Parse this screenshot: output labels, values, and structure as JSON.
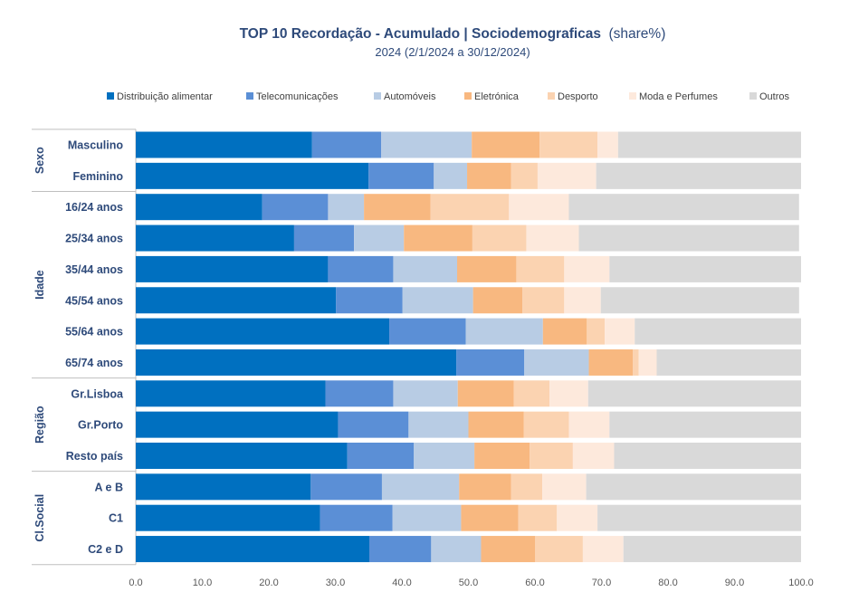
{
  "chart_data": {
    "type": "bar",
    "orientation": "horizontal",
    "stacked": true,
    "title": "TOP 10 Recordação - Acumulado | Sociodemograficas",
    "title_suffix": "(share%)",
    "subtitle": "2024 (2/1/2024 a 30/12/2024)",
    "legend_position": "top",
    "xlim": [
      0,
      100
    ],
    "x_ticks": [
      "0.0",
      "10.0",
      "20.0",
      "30.0",
      "40.0",
      "50.0",
      "60.0",
      "70.0",
      "80.0",
      "90.0",
      "100.0"
    ],
    "grid": false,
    "groups": [
      {
        "name": "Sexo",
        "categories": [
          "Masculino",
          "Feminino"
        ]
      },
      {
        "name": "Idade",
        "categories": [
          "16/24 anos",
          "25/34 anos",
          "35/44 anos",
          "45/54 anos",
          "55/64 anos",
          "65/74 anos"
        ]
      },
      {
        "name": "Região",
        "categories": [
          "Gr.Lisboa",
          "Gr.Porto",
          "Resto país"
        ]
      },
      {
        "name": "Cl.Social",
        "categories": [
          "A e B",
          "C1",
          "C2 e D"
        ]
      }
    ],
    "categories": [
      "Masculino",
      "Feminino",
      "16/24 anos",
      "25/34 anos",
      "35/44 anos",
      "45/54 anos",
      "55/64 anos",
      "65/74 anos",
      "Gr.Lisboa",
      "Gr.Porto",
      "Resto país",
      "A e B",
      "C1",
      "C2 e D"
    ],
    "series": [
      {
        "name": "Distribuição alimentar",
        "color": "#0070c0",
        "values": [
          26.5,
          35.0,
          19.0,
          23.8,
          28.9,
          30.1,
          38.1,
          48.2,
          28.5,
          30.4,
          31.8,
          26.3,
          27.7,
          35.1
        ]
      },
      {
        "name": "Telecomunicações",
        "color": "#5b8fd6",
        "values": [
          10.4,
          9.8,
          9.9,
          9.0,
          9.8,
          10.0,
          11.5,
          10.2,
          10.2,
          10.6,
          10.0,
          10.7,
          10.9,
          9.3
        ]
      },
      {
        "name": "Automóveis",
        "color": "#b8cce4",
        "values": [
          13.6,
          5.0,
          5.4,
          7.5,
          9.6,
          10.6,
          11.6,
          9.7,
          9.7,
          9.0,
          9.1,
          11.6,
          10.3,
          7.5
        ]
      },
      {
        "name": "Eletrónica",
        "color": "#f8b880",
        "values": [
          10.2,
          6.6,
          10.0,
          10.3,
          8.9,
          7.4,
          6.6,
          6.6,
          8.4,
          8.3,
          8.3,
          7.8,
          8.6,
          8.1
        ]
      },
      {
        "name": "Desporto",
        "color": "#fbd3b1",
        "values": [
          8.7,
          4.0,
          11.8,
          8.1,
          7.2,
          6.3,
          2.7,
          0.9,
          5.4,
          6.8,
          6.5,
          4.7,
          5.8,
          7.2
        ]
      },
      {
        "name": "Moda e Perfumes",
        "color": "#fde9dc",
        "values": [
          3.1,
          8.8,
          9.0,
          7.9,
          6.8,
          5.5,
          4.5,
          2.7,
          5.8,
          6.1,
          6.2,
          6.6,
          6.1,
          6.1
        ]
      },
      {
        "name": "Outros",
        "color": "#d9d9d9",
        "values": [
          27.5,
          30.8,
          34.6,
          33.1,
          28.8,
          29.8,
          25.0,
          21.7,
          32.0,
          28.8,
          28.1,
          32.3,
          30.6,
          26.7
        ]
      }
    ]
  }
}
